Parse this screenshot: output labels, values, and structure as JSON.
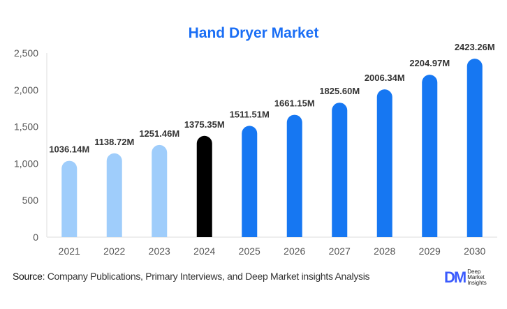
{
  "chart_data": {
    "type": "bar",
    "title": "Hand Dryer Market",
    "categories": [
      "2021",
      "2022",
      "2023",
      "2024",
      "2025",
      "2026",
      "2027",
      "2028",
      "2029",
      "2030"
    ],
    "values": [
      1036.14,
      1138.72,
      1251.46,
      1375.35,
      1511.51,
      1661.15,
      1825.6,
      2006.34,
      2204.97,
      2423.26
    ],
    "data_labels": [
      "1036.14M",
      "1138.72M",
      "1251.46M",
      "1375.35M",
      "1511.51M",
      "1661.15M",
      "1825.60M",
      "2006.34M",
      "2204.97M",
      "2423.26M"
    ],
    "ylim": [
      0,
      2500
    ],
    "yticks": [
      0,
      500,
      1000,
      1500,
      2000,
      2500
    ],
    "ytick_labels": [
      "0",
      "500",
      "1,000",
      "1,500",
      "2,000",
      "2,500"
    ],
    "grid": false,
    "bar_colors": [
      "#9fcdfb",
      "#9fcdfb",
      "#9fcdfb",
      "#000000",
      "#1677f2",
      "#1677f2",
      "#1677f2",
      "#1677f2",
      "#1677f2",
      "#1677f2"
    ]
  },
  "footer": {
    "source_label": "Source",
    "source_text": ": Company Publications, Primary Interviews, and Deep Market insights Analysis"
  },
  "logo": {
    "mark": "DM",
    "line1": "Deep",
    "line2": "Market",
    "line3": "Insights"
  }
}
